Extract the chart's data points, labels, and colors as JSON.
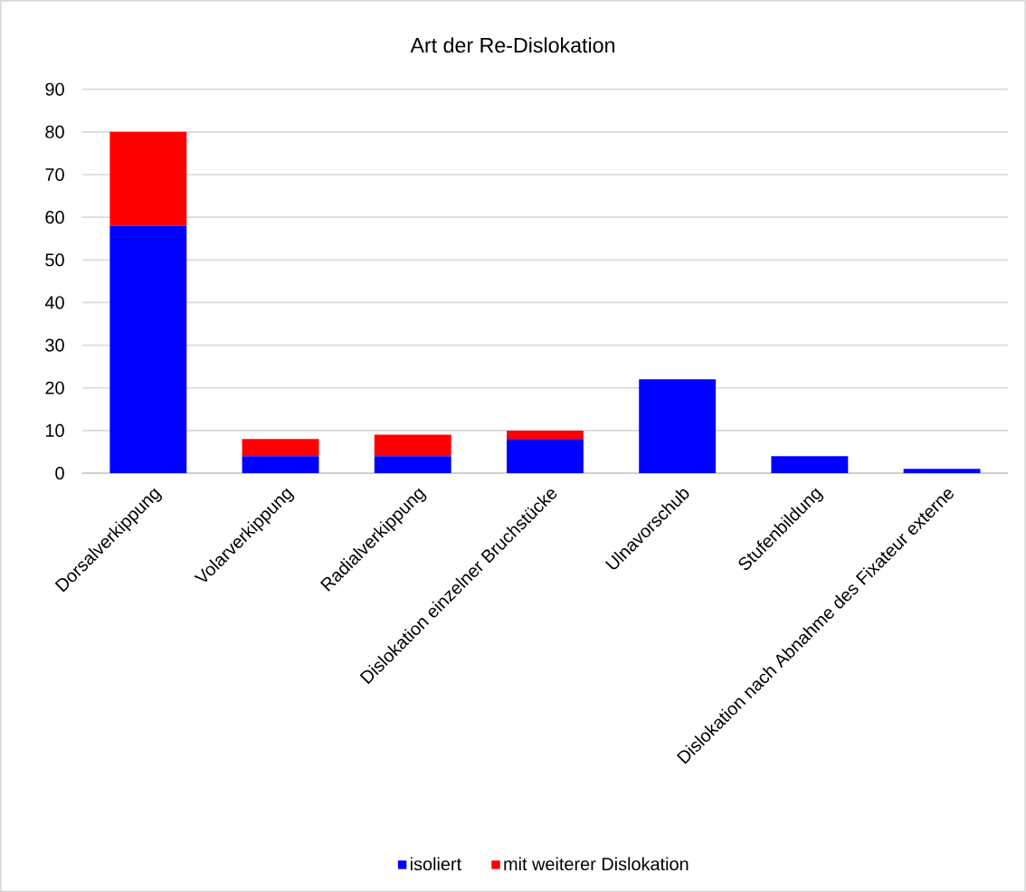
{
  "chart_data": {
    "type": "bar",
    "title": "Art der Re-Dislokation",
    "stacked": true,
    "categories": [
      "Dorsalverkippung",
      "Volarverkippung",
      "Radialverkippung",
      "Dislokation einzelner Bruchstücke",
      "Ulnavorschub",
      "Stufenbildung",
      "Dislokation nach Abnahme des Fixateur externe"
    ],
    "series": [
      {
        "name": "isoliert",
        "color": "#0000ff",
        "values": [
          58,
          4,
          4,
          8,
          22,
          4,
          1
        ]
      },
      {
        "name": "mit weiterer Dislokation",
        "color": "#ff0000",
        "values": [
          22,
          4,
          5,
          2,
          0,
          0,
          0
        ]
      }
    ],
    "ylim": [
      0,
      90
    ],
    "yticks": [
      0,
      10,
      20,
      30,
      40,
      50,
      60,
      70,
      80,
      90
    ],
    "grid": "y",
    "legend": "bottom"
  }
}
